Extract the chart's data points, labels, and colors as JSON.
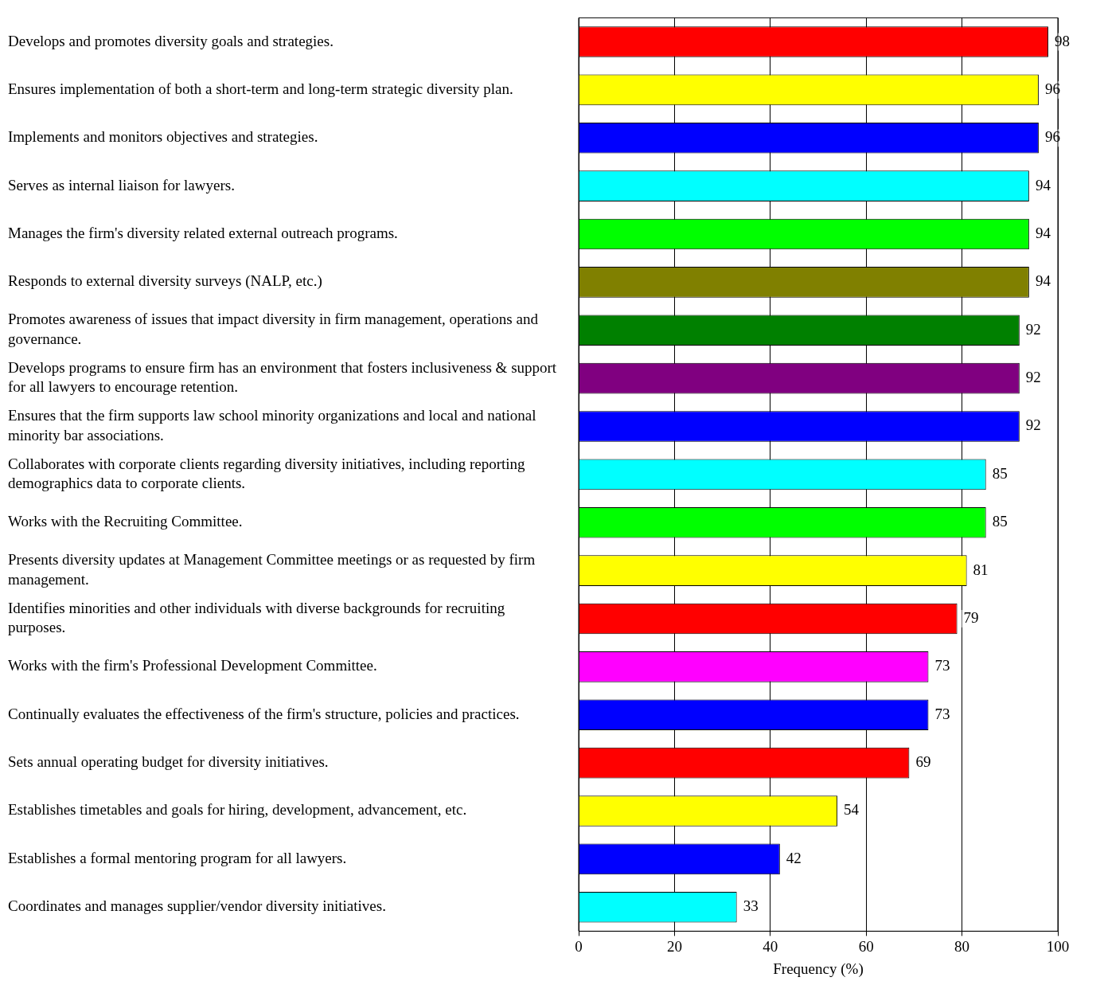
{
  "chart_data": {
    "type": "bar",
    "orientation": "horizontal",
    "xlabel": "Frequency (%)",
    "categories": [
      "Develops and promotes diversity goals and strategies.",
      "Ensures implementation of both a short-term and long-term strategic diversity plan.",
      "Implements and monitors objectives and strategies.",
      "Serves as internal liaison for lawyers.",
      "Manages the firm's diversity related external outreach programs.",
      "Responds to external diversity surveys (NALP, etc.)",
      "Promotes awareness of issues that impact diversity in firm management, operations and governance.",
      "Develops programs to ensure firm has an environment that fosters inclusiveness & support for all lawyers to encourage retention.",
      "Ensures that the firm supports law school minority organizations and local and national minority bar associations.",
      "Collaborates with corporate clients regarding diversity initiatives, including reporting demographics data to corporate clients.",
      "Works with the Recruiting Committee.",
      "Presents diversity updates at Management Committee meetings or as requested by firm management.",
      "Identifies minorities and other individuals with diverse backgrounds for recruiting purposes.",
      "Works with the firm's Professional Development Committee.",
      "Continually evaluates the effectiveness of the firm's structure, policies and practices.",
      "Sets annual operating budget for diversity initiatives.",
      "Establishes timetables and goals for hiring, development, advancement, etc.",
      "Establishes a formal mentoring program for all lawyers.",
      "Coordinates and manages supplier/vendor diversity initiatives."
    ],
    "values": [
      98,
      96,
      96,
      94,
      94,
      94,
      92,
      92,
      92,
      85,
      85,
      81,
      79,
      73,
      73,
      69,
      54,
      42,
      33
    ],
    "colors": [
      "#ff0000",
      "#ffff00",
      "#0000ff",
      "#00ffff",
      "#00ff00",
      "#808000",
      "#008000",
      "#800080",
      "#0000ff",
      "#00ffff",
      "#00ff00",
      "#ffff00",
      "#ff0000",
      "#ff00ff",
      "#0000ff",
      "#ff0000",
      "#ffff00",
      "#0000ff",
      "#00ffff"
    ],
    "xlim": [
      0,
      100
    ],
    "xticks": [
      0,
      20,
      40,
      60,
      80,
      100
    ],
    "grid": "x",
    "data_labels": true,
    "legend": false
  }
}
